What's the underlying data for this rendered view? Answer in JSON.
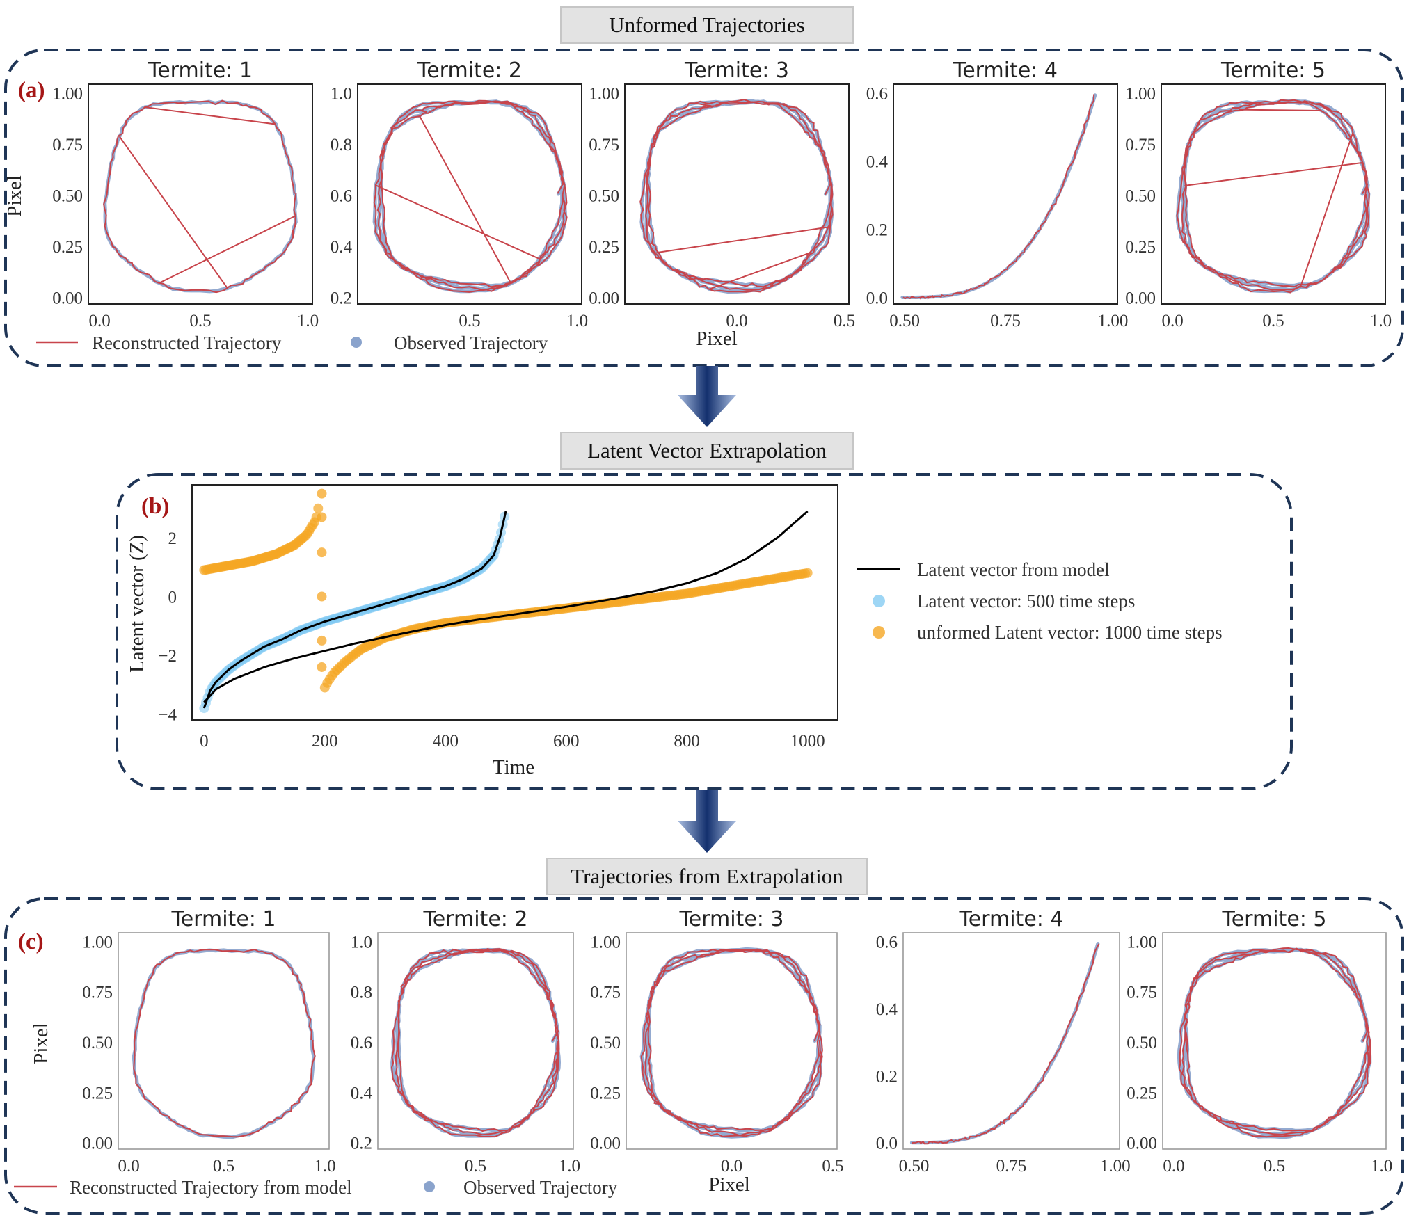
{
  "stages": {
    "a": "Unformed Trajectories",
    "b": "Latent Vector Extrapolation",
    "c": "Trajectories from Extrapolation"
  },
  "panel_letters": {
    "a": "(a)",
    "b": "(b)",
    "c": "(c)"
  },
  "colors": {
    "reconstructed": "#c8444b",
    "observed": "#4c72b0",
    "model_line": "#000000",
    "latent_500": "#7ec8f2",
    "latent_unformed": "#f5a623",
    "dashed_border": "#1f3556",
    "arrow": "#1b3a78"
  },
  "labels": {
    "pixel": "Pixel",
    "time": "Time",
    "latent_y": "Latent vector (Z)"
  },
  "legend_a": {
    "reconstructed": "Reconstructed Trajectory",
    "observed": "Observed Trajectory"
  },
  "legend_c": {
    "reconstructed": "Reconstructed Trajectory from model",
    "observed": "Observed Trajectory"
  },
  "legend_b": {
    "model": "Latent vector from model",
    "latent_500": "Latent vector: 500 time steps",
    "unformed": "unformed Latent vector: 1000 time steps"
  },
  "chart_data": [
    {
      "type": "line",
      "panel": "a",
      "subplots": [
        {
          "title": "Termite: 1",
          "shape": "loop",
          "jumps": true,
          "xticks": [
            "0.0",
            "0.5",
            "1.0"
          ],
          "yticks": [
            "1.00",
            "0.75",
            "0.50",
            "0.25",
            "0.00"
          ],
          "xlim": [
            0,
            1
          ],
          "ylim": [
            0,
            1
          ]
        },
        {
          "title": "Termite: 2",
          "shape": "loop",
          "jumps": true,
          "xticks": [
            "0.5",
            "1.0"
          ],
          "yticks": [
            "1.0",
            "0.8",
            "0.6",
            "0.4",
            "0.2"
          ],
          "xlim": [
            0.1,
            1.05
          ],
          "ylim": [
            0.1,
            1.0
          ]
        },
        {
          "title": "Termite: 3",
          "shape": "loop",
          "jumps": true,
          "xticks": [
            "0.0",
            "0.5"
          ],
          "yticks": [
            "1.00",
            "0.75",
            "0.50",
            "0.25",
            "0.00"
          ],
          "xlim": [
            0,
            1
          ],
          "ylim": [
            0,
            1
          ]
        },
        {
          "title": "Termite: 4",
          "shape": "curve",
          "jumps": false,
          "xticks": [
            "0.50",
            "0.75",
            "1.00"
          ],
          "yticks": [
            "0.6",
            "0.4",
            "0.2",
            "0.0"
          ],
          "xlim": [
            0.35,
            1.02
          ],
          "ylim": [
            0,
            0.75
          ]
        },
        {
          "title": "Termite: 5",
          "shape": "loop",
          "jumps": true,
          "xticks": [
            "0.0",
            "0.5",
            "1.0"
          ],
          "yticks": [
            "1.00",
            "0.75",
            "0.50",
            "0.25",
            "0.00"
          ],
          "xlim": [
            0,
            1
          ],
          "ylim": [
            0,
            1
          ]
        }
      ],
      "ylabel": "Pixel",
      "xlabel": "Pixel",
      "series": [
        {
          "name": "Reconstructed Trajectory"
        },
        {
          "name": "Observed Trajectory"
        }
      ]
    },
    {
      "type": "scatter",
      "panel": "b",
      "xlabel": "Time",
      "ylabel": "Latent vector (Z)",
      "xlim": [
        -20,
        1050
      ],
      "ylim": [
        -4.2,
        3.8
      ],
      "xticks": [
        0,
        200,
        400,
        600,
        800,
        1000
      ],
      "yticks": [
        2,
        0,
        -2,
        -4
      ],
      "legend": "right",
      "series": [
        {
          "name": "Latent vector from model",
          "kind": "line",
          "x": [
            0,
            20,
            50,
            100,
            150,
            200,
            250,
            300,
            350,
            400,
            450,
            500,
            550,
            600,
            650,
            700,
            750,
            800,
            850,
            900,
            950,
            1000
          ],
          "y": [
            -3.6,
            -3.15,
            -2.8,
            -2.4,
            -2.1,
            -1.85,
            -1.6,
            -1.38,
            -1.17,
            -0.97,
            -0.8,
            -0.65,
            -0.5,
            -0.35,
            -0.18,
            0.0,
            0.2,
            0.45,
            0.8,
            1.3,
            2.0,
            2.9
          ]
        },
        {
          "name": "Latent vector: 500 time steps",
          "kind": "scatter",
          "x": [
            0,
            10,
            20,
            40,
            60,
            80,
            100,
            130,
            160,
            200,
            250,
            300,
            350,
            400,
            430,
            460,
            480,
            490,
            500
          ],
          "y": [
            -3.8,
            -3.2,
            -2.9,
            -2.5,
            -2.2,
            -1.95,
            -1.7,
            -1.45,
            -1.15,
            -0.85,
            -0.55,
            -0.25,
            0.05,
            0.35,
            0.6,
            0.95,
            1.4,
            2.0,
            2.9
          ]
        },
        {
          "name": "unformed Latent vector: 1000 time steps",
          "kind": "scatter",
          "x": [
            0,
            40,
            80,
            120,
            150,
            170,
            185,
            190,
            195,
            195,
            195,
            195,
            195,
            195,
            200,
            205,
            215,
            235,
            260,
            300,
            350,
            400,
            500,
            600,
            700,
            800,
            900,
            1000
          ],
          "y": [
            0.9,
            1.05,
            1.2,
            1.45,
            1.75,
            2.1,
            2.6,
            3.1,
            3.5,
            2.7,
            1.5,
            0,
            -1.5,
            -2.4,
            -3.1,
            -2.9,
            -2.6,
            -2.2,
            -1.8,
            -1.4,
            -1.1,
            -0.9,
            -0.65,
            -0.4,
            -0.15,
            0.1,
            0.45,
            0.8
          ]
        }
      ]
    },
    {
      "type": "line",
      "panel": "c",
      "subplots": [
        {
          "title": "Termite: 1",
          "shape": "loop",
          "jumps": false,
          "xticks": [
            "0.0",
            "0.5",
            "1.0"
          ],
          "yticks": [
            "1.00",
            "0.75",
            "0.50",
            "0.25",
            "0.00"
          ],
          "xlim": [
            0,
            1
          ],
          "ylim": [
            0,
            1
          ]
        },
        {
          "title": "Termite: 2",
          "shape": "loop",
          "jumps": false,
          "xticks": [
            "0.5",
            "1.0"
          ],
          "yticks": [
            "1.0",
            "0.8",
            "0.6",
            "0.4",
            "0.2"
          ],
          "xlim": [
            0.1,
            1.05
          ],
          "ylim": [
            0.1,
            1.0
          ]
        },
        {
          "title": "Termite: 3",
          "shape": "loop",
          "jumps": false,
          "xticks": [
            "0.0",
            "0.5"
          ],
          "yticks": [
            "1.00",
            "0.75",
            "0.50",
            "0.25",
            "0.00"
          ],
          "xlim": [
            0,
            1
          ],
          "ylim": [
            0,
            1
          ]
        },
        {
          "title": "Termite: 4",
          "shape": "curve",
          "jumps": false,
          "xticks": [
            "0.50",
            "0.75",
            "1.00"
          ],
          "yticks": [
            "0.6",
            "0.4",
            "0.2",
            "0.0"
          ],
          "xlim": [
            0.35,
            1.02
          ],
          "ylim": [
            0,
            0.75
          ]
        },
        {
          "title": "Termite: 5",
          "shape": "loop",
          "jumps": false,
          "xticks": [
            "0.0",
            "0.5",
            "1.0"
          ],
          "yticks": [
            "1.00",
            "0.75",
            "0.50",
            "0.25",
            "0.00"
          ],
          "xlim": [
            0,
            1
          ],
          "ylim": [
            0,
            1
          ]
        }
      ],
      "ylabel": "Pixel",
      "xlabel": "Pixel",
      "series": [
        {
          "name": "Reconstructed Trajectory from model"
        },
        {
          "name": "Observed Trajectory"
        }
      ]
    }
  ]
}
